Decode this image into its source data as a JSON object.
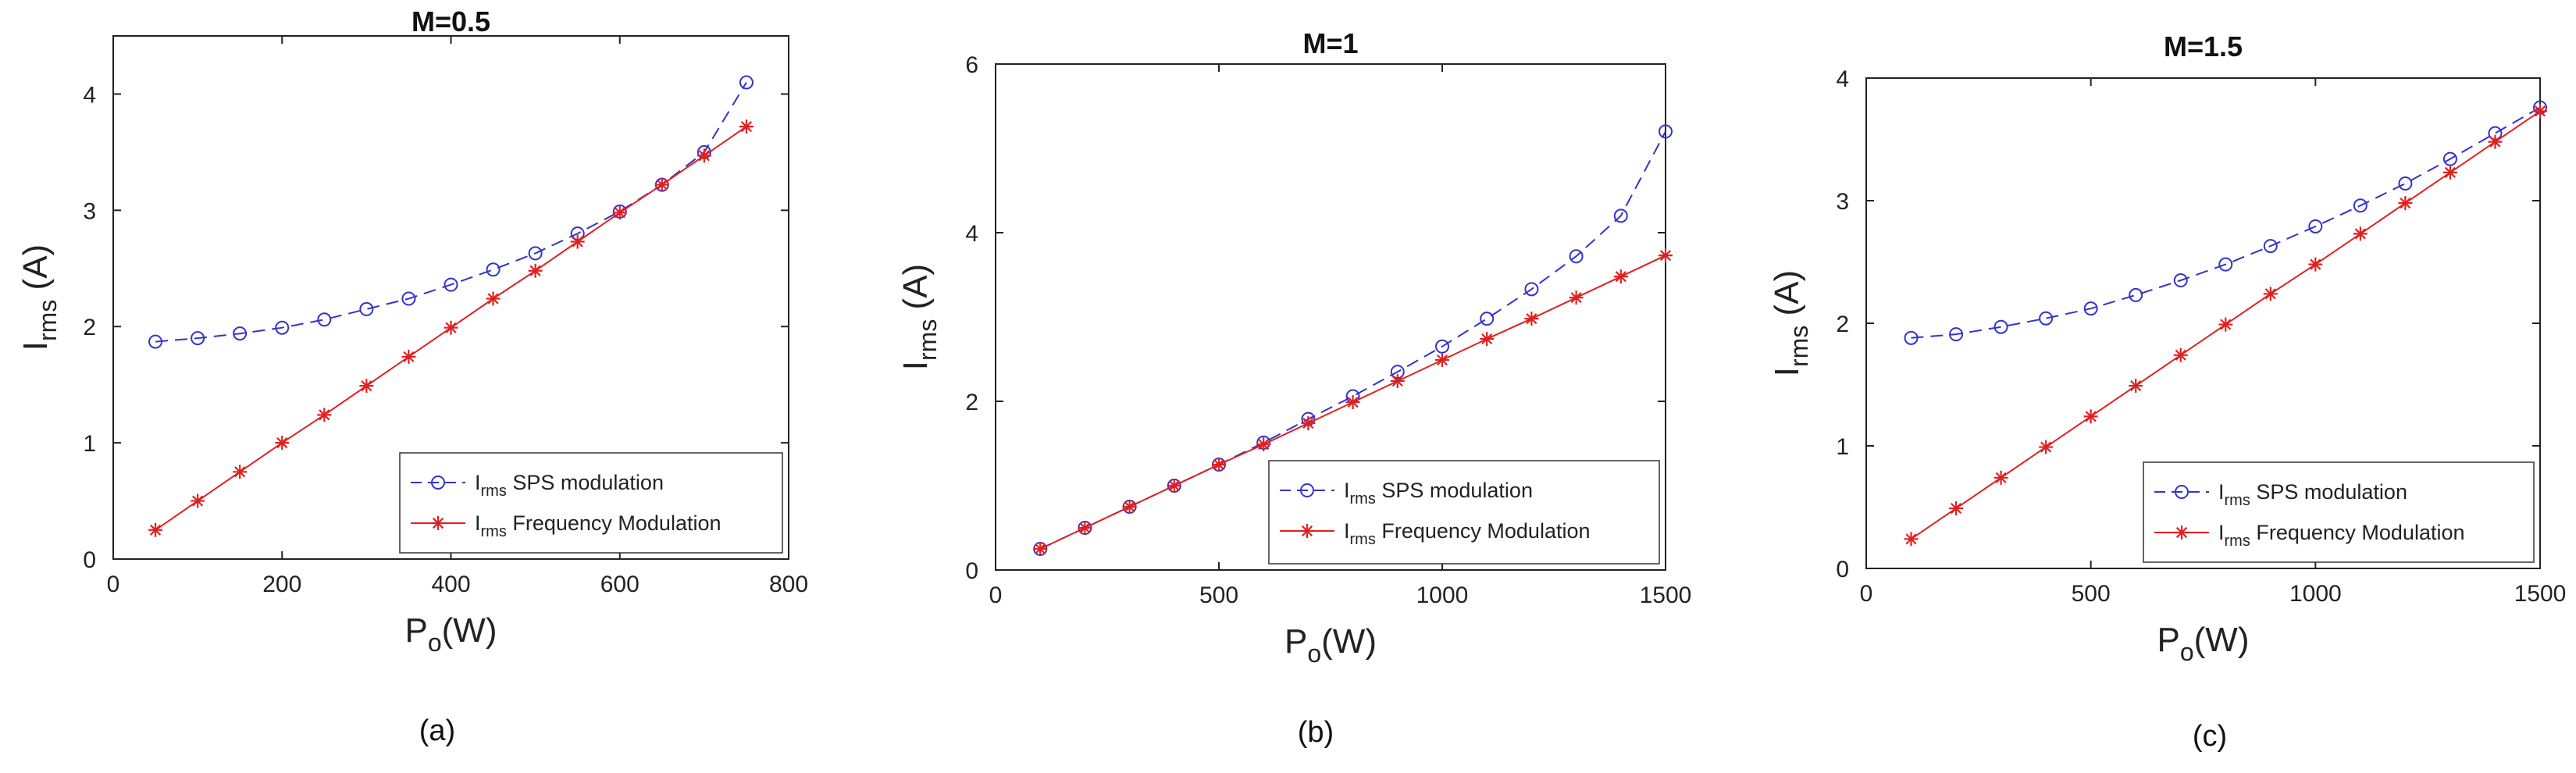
{
  "chart_data": [
    {
      "type": "line",
      "title": "M=0.5",
      "caption": "(a)",
      "xlabel": {
        "main": "P",
        "sub": "o",
        "rest": "(W)"
      },
      "ylabel": {
        "main": "I",
        "sub": "rms",
        "rest": " (A)"
      },
      "xlim": [
        0,
        800
      ],
      "ylim": [
        0,
        4.5
      ],
      "xticks": [
        0,
        200,
        400,
        600,
        800
      ],
      "yticks": [
        0,
        1,
        2,
        3,
        4
      ],
      "xtick_labels": [
        "0",
        "200",
        "400",
        "600",
        "800"
      ],
      "ytick_labels": [
        "0",
        "1",
        "2",
        "3",
        "4"
      ],
      "legend_position": "bottom-right",
      "series": [
        {
          "name": {
            "main": "I",
            "sub": "rms",
            "rest": " SPS modulation"
          },
          "color": "#3333cc",
          "style": "dashed",
          "marker": "circle",
          "x": [
            50,
            100,
            150,
            200,
            250,
            300,
            350,
            400,
            450,
            500,
            550,
            600,
            650,
            700,
            750
          ],
          "y": [
            1.87,
            1.9,
            1.94,
            1.99,
            2.06,
            2.15,
            2.24,
            2.36,
            2.49,
            2.63,
            2.8,
            2.99,
            3.22,
            3.5,
            4.1
          ]
        },
        {
          "name": {
            "main": "I",
            "sub": "rms",
            "rest": " Frequency Modulation"
          },
          "color": "#e02020",
          "style": "solid",
          "marker": "star",
          "x": [
            50,
            100,
            150,
            200,
            250,
            300,
            350,
            400,
            450,
            500,
            550,
            600,
            650,
            700,
            750
          ],
          "y": [
            0.25,
            0.5,
            0.75,
            1.0,
            1.24,
            1.49,
            1.74,
            1.99,
            2.24,
            2.48,
            2.73,
            2.98,
            3.22,
            3.47,
            3.72
          ]
        }
      ]
    },
    {
      "type": "line",
      "title": "M=1",
      "caption": "(b)",
      "xlabel": {
        "main": "P",
        "sub": "o",
        "rest": "(W)"
      },
      "ylabel": {
        "main": "I",
        "sub": "rms",
        "rest": " (A)"
      },
      "xlim": [
        0,
        1500
      ],
      "ylim": [
        0,
        6
      ],
      "xticks": [
        0,
        500,
        1000,
        1500
      ],
      "yticks": [
        0,
        2,
        4,
        6
      ],
      "xtick_labels": [
        "0",
        "500",
        "1000",
        "1500"
      ],
      "ytick_labels": [
        "0",
        "2",
        "4",
        "6"
      ],
      "legend_position": "bottom-right",
      "series": [
        {
          "name": {
            "main": "I",
            "sub": "rms",
            "rest": " SPS modulation"
          },
          "color": "#3333cc",
          "style": "dashed",
          "marker": "circle",
          "x": [
            100,
            200,
            300,
            400,
            500,
            600,
            700,
            800,
            900,
            1000,
            1100,
            1200,
            1300,
            1400,
            1500
          ],
          "y": [
            0.25,
            0.5,
            0.75,
            1.0,
            1.25,
            1.51,
            1.79,
            2.06,
            2.35,
            2.65,
            2.98,
            3.33,
            3.72,
            4.2,
            5.2
          ]
        },
        {
          "name": {
            "main": "I",
            "sub": "rms",
            "rest": " Frequency Modulation"
          },
          "color": "#e02020",
          "style": "solid",
          "marker": "star",
          "x": [
            100,
            200,
            300,
            400,
            500,
            600,
            700,
            800,
            900,
            1000,
            1100,
            1200,
            1300,
            1400,
            1500
          ],
          "y": [
            0.25,
            0.5,
            0.75,
            1.0,
            1.25,
            1.49,
            1.74,
            1.99,
            2.24,
            2.49,
            2.74,
            2.98,
            3.23,
            3.48,
            3.73
          ]
        }
      ]
    },
    {
      "type": "line",
      "title": "M=1.5",
      "caption": "(c)",
      "xlabel": {
        "main": "P",
        "sub": "o",
        "rest": "(W)"
      },
      "ylabel": {
        "main": "I",
        "sub": "rms",
        "rest": " (A)"
      },
      "xlim": [
        0,
        1500
      ],
      "ylim": [
        0,
        4
      ],
      "xticks": [
        0,
        500,
        1000,
        1500
      ],
      "yticks": [
        0,
        1,
        2,
        3,
        4
      ],
      "xtick_labels": [
        "0",
        "500",
        "1000",
        "1500"
      ],
      "ytick_labels": [
        "0",
        "1",
        "2",
        "3",
        "4"
      ],
      "legend_position": "bottom-right",
      "series": [
        {
          "name": {
            "main": "I",
            "sub": "rms",
            "rest": " SPS modulation"
          },
          "color": "#3333cc",
          "style": "dashed",
          "marker": "circle",
          "x": [
            100,
            200,
            300,
            400,
            500,
            600,
            700,
            800,
            900,
            1000,
            1100,
            1200,
            1300,
            1400,
            1500
          ],
          "y": [
            1.88,
            1.91,
            1.97,
            2.04,
            2.12,
            2.23,
            2.35,
            2.48,
            2.63,
            2.79,
            2.96,
            3.14,
            3.34,
            3.55,
            3.76
          ]
        },
        {
          "name": {
            "main": "I",
            "sub": "rms",
            "rest": " Frequency Modulation"
          },
          "color": "#e02020",
          "style": "solid",
          "marker": "star",
          "x": [
            100,
            200,
            300,
            400,
            500,
            600,
            700,
            800,
            900,
            1000,
            1100,
            1200,
            1300,
            1400,
            1500
          ],
          "y": [
            0.24,
            0.49,
            0.74,
            0.99,
            1.24,
            1.49,
            1.74,
            1.99,
            2.24,
            2.48,
            2.73,
            2.98,
            3.23,
            3.48,
            3.73
          ]
        }
      ]
    }
  ]
}
